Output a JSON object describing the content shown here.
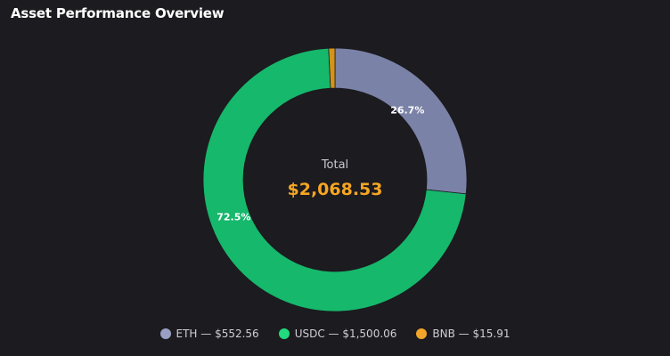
{
  "title": "Asset Performance Overview",
  "center": {
    "label": "Total",
    "value": "$2,068.53",
    "value_color": "#f5a623"
  },
  "chart_data": {
    "type": "pie",
    "variant": "donut",
    "title": "Asset Performance Overview",
    "total": 2068.53,
    "slices": [
      {
        "name": "ETH",
        "value": 552.56,
        "percent_label": "26.7%",
        "color": "#7b82a8",
        "legend": "ETH — $552.56"
      },
      {
        "name": "USDC",
        "value": 1500.06,
        "percent_label": "72.5%",
        "color": "#16b86c",
        "legend": "USDC — $1,500.06"
      },
      {
        "name": "BNB",
        "value": 15.91,
        "percent_label": "",
        "color": "#d4941a",
        "legend": "BNB — $15.91"
      }
    ],
    "legend_position": "bottom",
    "legend_dot_colors": [
      "#9aa0c4",
      "#22d97e",
      "#f2a52a"
    ]
  }
}
